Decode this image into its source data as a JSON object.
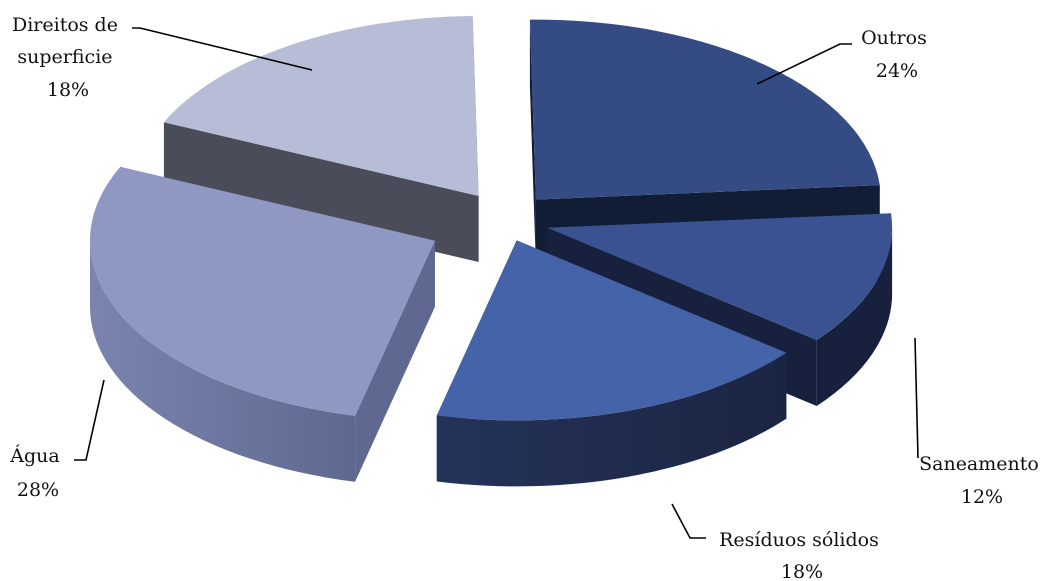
{
  "chart_data": {
    "type": "pie",
    "style": "3d-exploded",
    "title": "",
    "categories": [
      "Outros",
      "Saneamento",
      "Resíduos sólidos",
      "Água",
      "Direitos de superficie"
    ],
    "values": [
      24,
      12,
      18,
      28,
      18
    ],
    "unit": "%",
    "labels": [
      {
        "lines": [
          "Outros",
          "24%"
        ]
      },
      {
        "lines": [
          "Saneamento",
          "12%"
        ]
      },
      {
        "lines": [
          "Resíduos sólidos",
          "18%"
        ]
      },
      {
        "lines": [
          "Água",
          "28%"
        ]
      },
      {
        "lines": [
          "Direitos de",
          "superficie",
          "18%"
        ]
      }
    ],
    "colors": [
      "#344B83",
      "#3B5292",
      "#4563A8",
      "#8E98C2",
      "#B7BDD6"
    ],
    "side_colors": [
      "#111C35",
      "#17213D",
      "#1C2846",
      "#5E6890",
      "#4A4D59"
    ],
    "legend": "none",
    "grid": false
  }
}
